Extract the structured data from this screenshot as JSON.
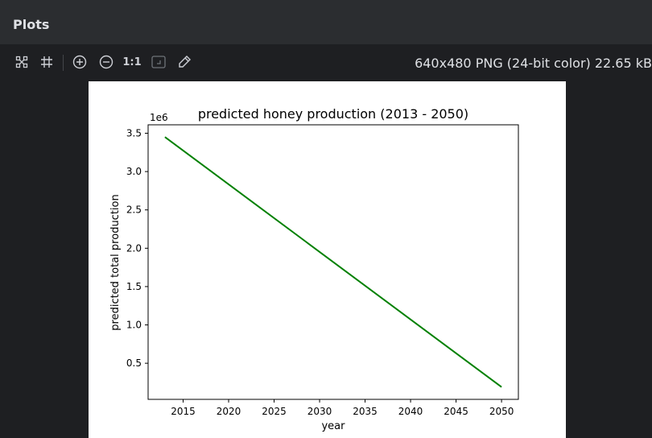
{
  "panel": {
    "title": "Plots"
  },
  "toolbar": {
    "tools": [
      {
        "name": "fit-grid-icon"
      },
      {
        "name": "grid-icon"
      },
      {
        "name": "zoom-in-icon"
      },
      {
        "name": "zoom-out-icon"
      },
      {
        "name": "actual-size",
        "label": "1:1"
      },
      {
        "name": "fit-window-icon"
      },
      {
        "name": "color-picker-icon"
      }
    ],
    "image_info": "640x480 PNG (24-bit color) 22.65 kB"
  },
  "chart_data": {
    "type": "line",
    "title": "predicted honey production (2013 - 2050)",
    "xlabel": "year",
    "ylabel": "predicted total production",
    "y_offset_label": "1e6",
    "xlim": [
      2011.15,
      2051.85
    ],
    "ylim": [
      29000,
      3610000
    ],
    "xticks": [
      2015,
      2020,
      2025,
      2030,
      2035,
      2040,
      2045,
      2050
    ],
    "xtick_labels": [
      "2015",
      "2020",
      "2025",
      "2030",
      "2035",
      "2040",
      "2045",
      "2050"
    ],
    "yticks": [
      500000,
      1000000,
      1500000,
      2000000,
      2500000,
      3000000,
      3500000
    ],
    "ytick_labels": [
      "0.5",
      "1.0",
      "1.5",
      "2.0",
      "2.5",
      "3.0",
      "3.5"
    ],
    "series": [
      {
        "x": [
          2013,
          2050
        ],
        "y": [
          3450000,
          190000
        ],
        "color": "#008000"
      }
    ],
    "grid": false
  }
}
